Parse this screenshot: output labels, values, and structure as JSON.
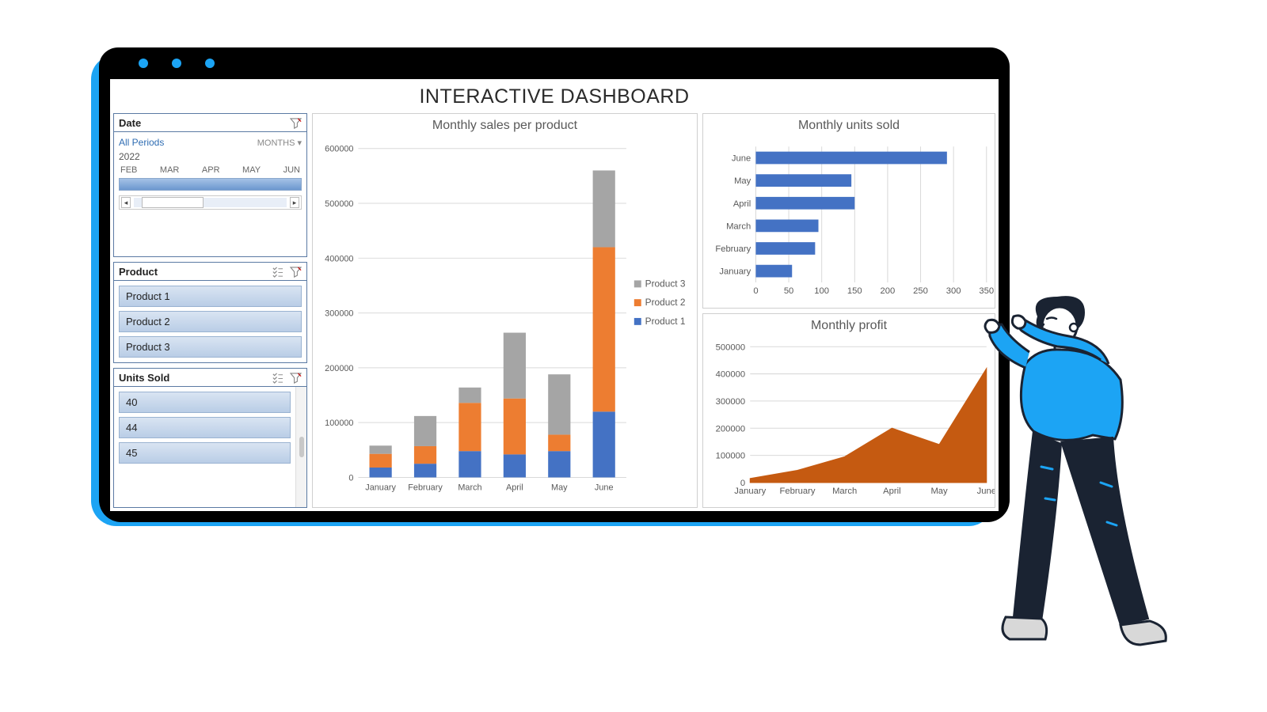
{
  "dashboard_title": "INTERACTIVE DASHBOARD",
  "sidebar": {
    "date": {
      "title": "Date",
      "all_periods": "All Periods",
      "months_label": "MONTHS",
      "year": "2022",
      "months": [
        "FEB",
        "MAR",
        "APR",
        "MAY",
        "JUN"
      ]
    },
    "product": {
      "title": "Product",
      "items": [
        "Product 1",
        "Product 2",
        "Product 3"
      ]
    },
    "units_sold": {
      "title": "Units Sold",
      "items": [
        "40",
        "44",
        "45"
      ]
    }
  },
  "colors": {
    "product1": "#4472c4",
    "product2": "#ed7d31",
    "product3": "#a5a5a5",
    "grid": "#d9d9d9",
    "axis": "#bfbfbf",
    "text": "#595959",
    "profit_fill": "#c55a11"
  },
  "monthly_sales": {
    "title": "Monthly sales per product",
    "type": "stacked_bar",
    "categories": [
      "January",
      "February",
      "March",
      "April",
      "May",
      "June"
    ],
    "series": [
      {
        "name": "Product 1",
        "color": "#4472c4",
        "values": [
          18000,
          25000,
          48000,
          42000,
          48000,
          120000
        ]
      },
      {
        "name": "Product 2",
        "color": "#ed7d31",
        "values": [
          25000,
          32000,
          88000,
          102000,
          30000,
          300000
        ]
      },
      {
        "name": "Product 3",
        "color": "#a5a5a5",
        "values": [
          15000,
          55000,
          28000,
          120000,
          110000,
          140000
        ]
      }
    ],
    "legend_order": [
      "Product 3",
      "Product 2",
      "Product 1"
    ],
    "ymax": 600000,
    "ytick_step": 100000
  },
  "units_sold_chart": {
    "title": "Monthly units sold",
    "type": "hbar",
    "categories": [
      "June",
      "May",
      "April",
      "March",
      "February",
      "January"
    ],
    "values": [
      290,
      145,
      150,
      95,
      90,
      55
    ],
    "color": "#4472c4",
    "xmax": 350,
    "xtick_step": 50
  },
  "profit_chart": {
    "title": "Monthly profit",
    "type": "area",
    "categories": [
      "January",
      "February",
      "March",
      "April",
      "May",
      "June"
    ],
    "values": [
      15000,
      45000,
      95000,
      200000,
      140000,
      420000
    ],
    "color": "#c55a11",
    "ymax": 500000,
    "ytick_step": 100000
  }
}
